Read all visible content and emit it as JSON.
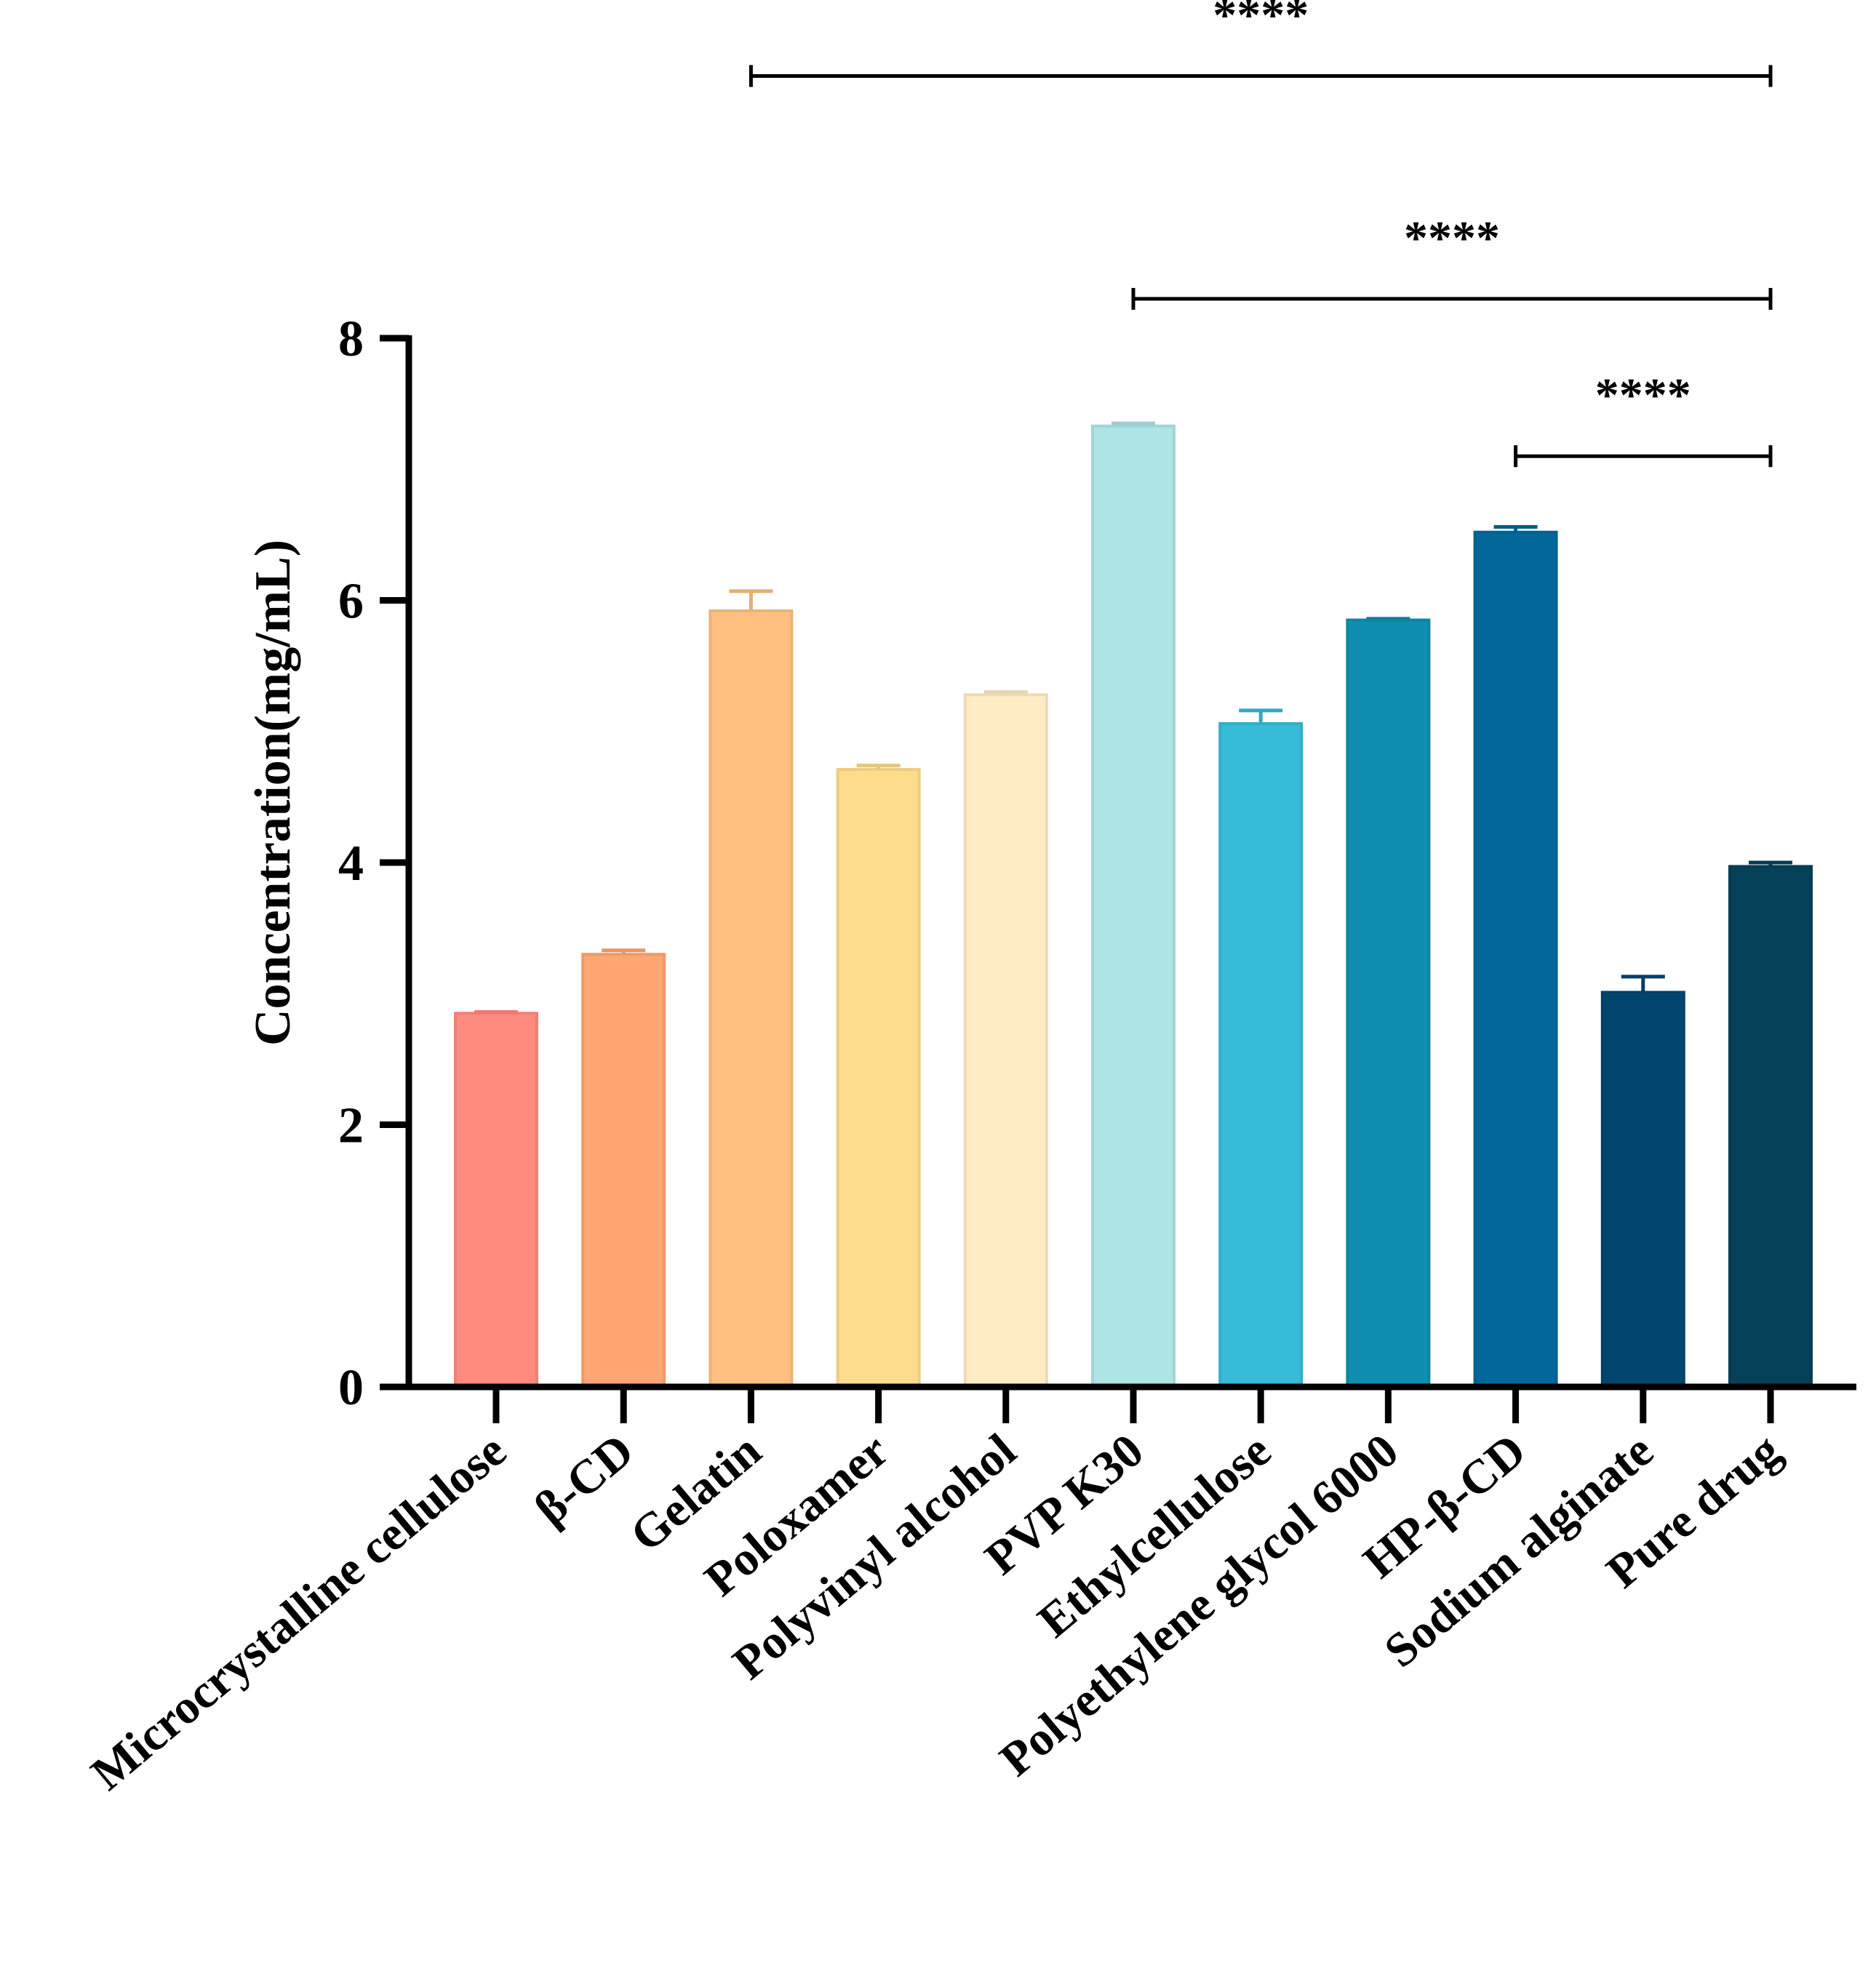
{
  "chart_data": {
    "type": "bar",
    "title": "",
    "xlabel": "",
    "ylabel": "Concentration(mg/mL)",
    "ylim": [
      0,
      8
    ],
    "yticks": [
      0,
      2,
      4,
      6,
      8
    ],
    "categories": [
      "Microcrystalline cellulose",
      "β-CD",
      "Gelatin",
      "Poloxamer",
      "Polyvinyl alcohol",
      "PVP K30",
      "Ethylcellulose",
      "Polyethylene glycol 6000",
      "HP-β-CD",
      "Sodium alginate",
      "Pure drug"
    ],
    "values": [
      2.85,
      3.3,
      5.92,
      4.71,
      5.28,
      7.33,
      5.06,
      5.85,
      6.52,
      3.01,
      3.97
    ],
    "errors": [
      0.01,
      0.03,
      0.15,
      0.03,
      0.02,
      0.02,
      0.1,
      0.01,
      0.04,
      0.12,
      0.03
    ],
    "colors": [
      "#FF8A7E",
      "#FFA672",
      "#FFBF80",
      "#FFDC8C",
      "#FFEBC4",
      "#ADE4E6",
      "#36BBD8",
      "#108EB0",
      "#04679A",
      "#024670",
      "#044058"
    ],
    "significance": [
      {
        "label": "****",
        "from": "Gelatin",
        "to": "Pure drug",
        "level": 10.0
      },
      {
        "label": "****",
        "from": "PVP K30",
        "to": "Pure drug",
        "level": 8.3
      },
      {
        "label": "****",
        "from": "HP-β-CD",
        "to": "Pure drug",
        "level": 7.1
      }
    ]
  }
}
